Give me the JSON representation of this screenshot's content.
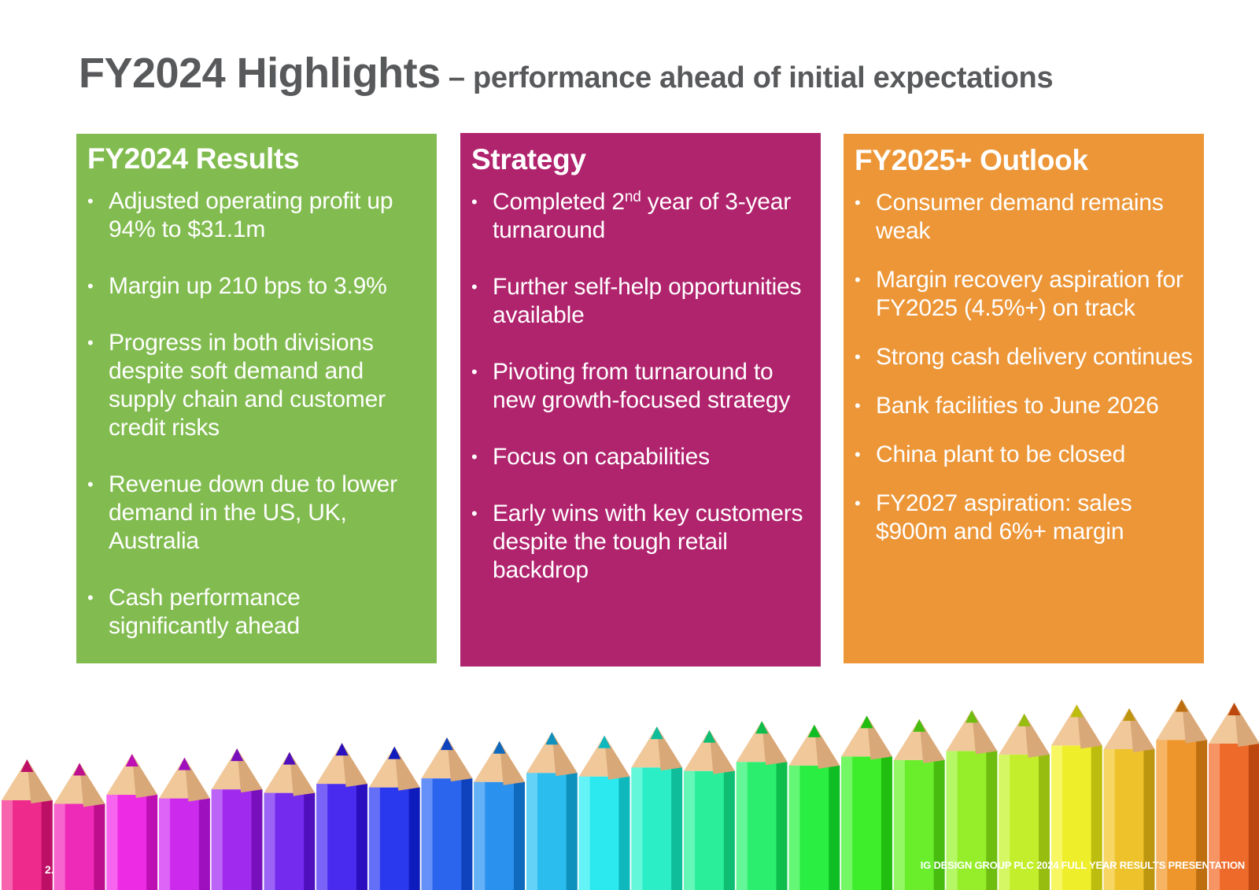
{
  "title": {
    "main": "FY2024 Highlights",
    "sub": " – performance ahead of initial expectations"
  },
  "panels": [
    {
      "heading": "FY2024 Results",
      "color": "#82bc50",
      "bullets": [
        "Adjusted operating profit up 94% to $31.1m",
        "Margin up 210 bps to 3.9%",
        "Progress in both divisions despite soft demand and supply chain and customer credit risks",
        "Revenue down due to lower demand in the US, UK, Australia",
        "Cash performance significantly ahead"
      ]
    },
    {
      "heading": "Strategy",
      "color": "#b0236d",
      "bullets_special": {
        "first_pre": "Completed 2",
        "first_sup": "nd",
        "first_post": " year of 3-year turnaround"
      },
      "bullets": [
        "Further self-help opportunities available",
        "Pivoting from turnaround to new growth-focused strategy",
        "Focus on capabilities",
        "Early wins with key customers despite the tough retail backdrop"
      ]
    },
    {
      "heading": "FY2025+ Outlook",
      "color": "#ec9638",
      "bullets": [
        "Consumer demand remains weak",
        "Margin recovery aspiration for FY2025 (4.5%+) on track",
        "Strong cash delivery continues",
        "Bank facilities to June 2026",
        "China plant to be closed",
        "FY2027 aspiration: sales $900m and 6%+ margin"
      ]
    }
  ],
  "footer": {
    "page_number": "2.",
    "text": "IG DESIGN GROUP PLC 2024 FULL YEAR RESULTS PRESENTATION"
  }
}
